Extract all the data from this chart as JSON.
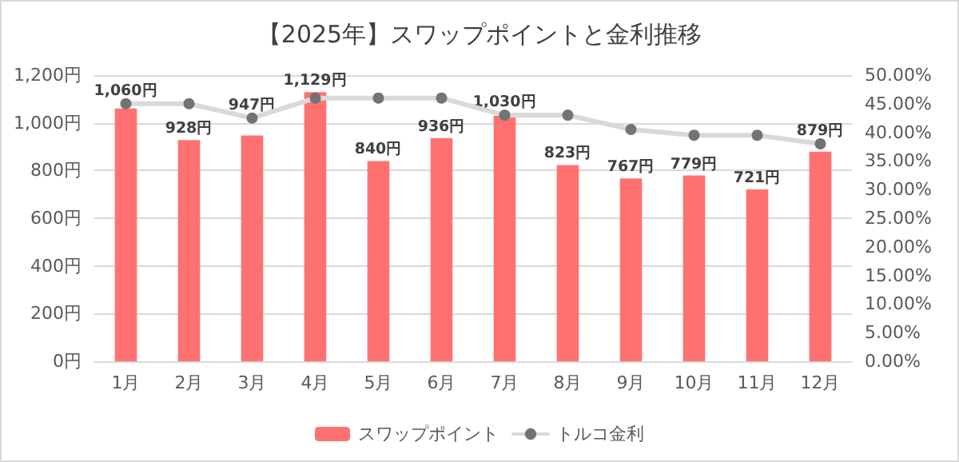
{
  "chart_data": {
    "type": "bar",
    "title": "【2025年】スワップポイントと金利推移",
    "categories": [
      "1月",
      "2月",
      "3月",
      "4月",
      "5月",
      "6月",
      "7月",
      "8月",
      "9月",
      "10月",
      "11月",
      "12月"
    ],
    "series": [
      {
        "name": "スワップポイント",
        "color": "#ff7171",
        "values": [
          1060,
          928,
          947,
          1129,
          840,
          936,
          1030,
          823,
          767,
          779,
          721,
          879
        ],
        "value_labels": [
          "1,060円",
          "928円",
          "947円",
          "1,129円",
          "840円",
          "936円",
          "1,030円",
          "823円",
          "767円",
          "779円",
          "721円",
          "879円"
        ]
      },
      {
        "name": "トルコ金利",
        "type": "line",
        "axis": "y2",
        "color": "#d9d9d9",
        "marker": "circle",
        "values": [
          45,
          45,
          42.5,
          46,
          46,
          46,
          43,
          43,
          40.5,
          39.5,
          39.5,
          38
        ]
      }
    ],
    "ylim": [
      0,
      1200
    ],
    "yticks": [
      {
        "value": 0,
        "label": "0円"
      },
      {
        "value": 200,
        "label": "200円"
      },
      {
        "value": 400,
        "label": "400円"
      },
      {
        "value": 600,
        "label": "600円"
      },
      {
        "value": 800,
        "label": "800円"
      },
      {
        "value": 1000,
        "label": "1,000円"
      },
      {
        "value": 1200,
        "label": "1,200円"
      }
    ],
    "y2lim": [
      0,
      50
    ],
    "y2ticks": [
      {
        "value": 0,
        "label": "0.00%"
      },
      {
        "value": 5,
        "label": "5.00%"
      },
      {
        "value": 10,
        "label": "10.00%"
      },
      {
        "value": 15,
        "label": "15.00%"
      },
      {
        "value": 20,
        "label": "20.00%"
      },
      {
        "value": 25,
        "label": "25.00%"
      },
      {
        "value": 30,
        "label": "30.00%"
      },
      {
        "value": 35,
        "label": "35.00%"
      },
      {
        "value": 40,
        "label": "40.00%"
      },
      {
        "value": 45,
        "label": "45.00%"
      },
      {
        "value": 50,
        "label": "50.00%"
      }
    ],
    "grid": "y",
    "legend": "bottom"
  }
}
